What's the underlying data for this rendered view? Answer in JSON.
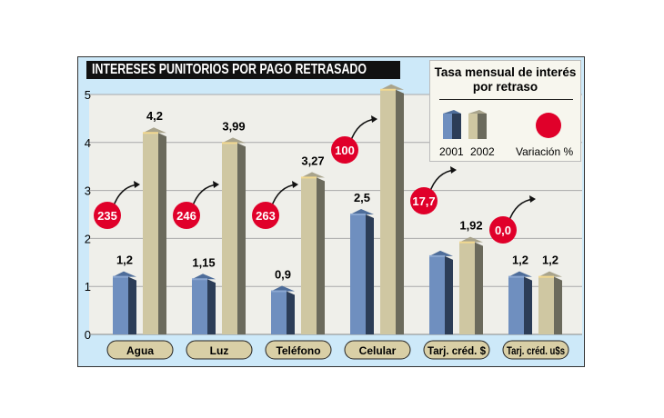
{
  "chart_data": {
    "type": "bar",
    "title": "INTERESES PUNITORIOS POR PAGO RETRASADO",
    "categories": [
      "Agua",
      "Luz",
      "Teléfono",
      "Celular",
      "Tarj. créd. $",
      "Tarj. créd. u$s"
    ],
    "series": [
      {
        "name": "2001",
        "values": [
          1.2,
          1.15,
          0.9,
          2.5,
          1.63,
          1.2
        ],
        "labels": [
          "1,2",
          "1,15",
          "0,9",
          "2,5",
          "",
          "1,2"
        ],
        "color": "#6f8fbf"
      },
      {
        "name": "2002",
        "values": [
          4.2,
          3.99,
          3.27,
          5.1,
          1.92,
          1.2
        ],
        "labels": [
          "4,2",
          "3,99",
          "3,27",
          "5,1",
          "1,92",
          "1,2"
        ],
        "color": "#cfc7a2"
      }
    ],
    "variation": {
      "name": "Variación %",
      "labels": [
        "235",
        "246",
        "263",
        "100",
        "17,7",
        "0,0"
      ],
      "color": "#e0002a"
    },
    "ylim": [
      0,
      5
    ],
    "yticks": [
      "0",
      "1",
      "2",
      "3",
      "4",
      "5"
    ],
    "grid": true,
    "legend": {
      "position": "top-right",
      "title": "Tasa mensual de interés por retraso"
    }
  }
}
